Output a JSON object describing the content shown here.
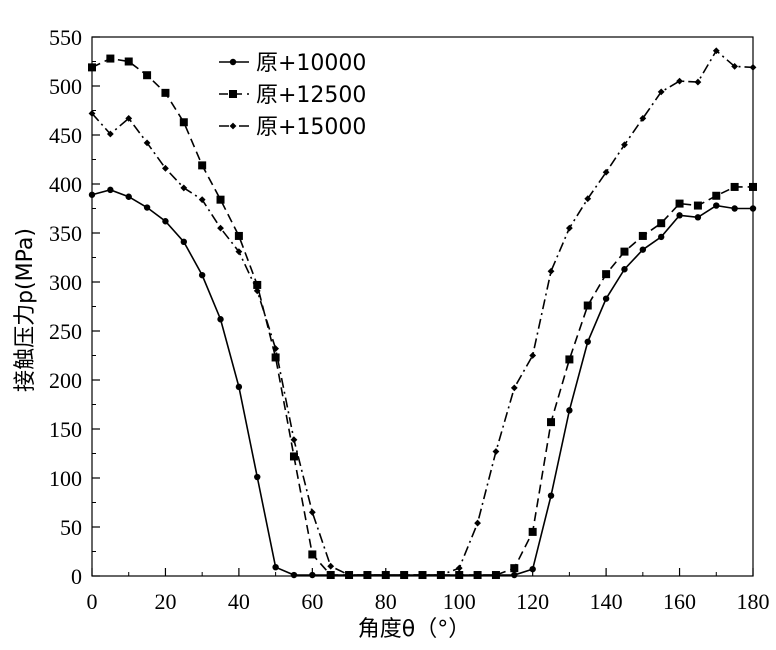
{
  "chart_data": {
    "type": "line",
    "title": "",
    "xlabel": "角度θ（°）",
    "ylabel": "接触压力p(MPa)",
    "xlim": [
      0,
      180
    ],
    "ylim": [
      0,
      550
    ],
    "x_ticks": [
      0,
      20,
      40,
      60,
      80,
      100,
      120,
      140,
      160,
      180
    ],
    "y_ticks": [
      0,
      50,
      100,
      150,
      200,
      250,
      300,
      350,
      400,
      450,
      500,
      550
    ],
    "grid": false,
    "legend_position": "top-center",
    "x": [
      0,
      5,
      10,
      15,
      20,
      25,
      30,
      35,
      40,
      45,
      50,
      55,
      60,
      65,
      70,
      75,
      80,
      85,
      90,
      95,
      100,
      105,
      110,
      115,
      120,
      125,
      130,
      135,
      140,
      145,
      150,
      155,
      160,
      165,
      170,
      175,
      180
    ],
    "series": [
      {
        "name": "原+10000",
        "marker": "circle",
        "dash": "solid",
        "values": [
          389,
          394,
          387,
          376,
          362,
          341,
          307,
          262,
          193,
          101,
          9,
          1,
          1,
          1,
          1,
          1,
          1,
          1,
          1,
          1,
          1,
          1,
          1,
          1,
          7,
          82,
          169,
          239,
          283,
          313,
          333,
          346,
          368,
          366,
          378,
          375,
          375
        ]
      },
      {
        "name": "原+12500",
        "marker": "square",
        "dash": "dashed",
        "values": [
          519,
          528,
          525,
          511,
          493,
          463,
          419,
          384,
          347,
          297,
          223,
          122,
          22,
          1,
          1,
          1,
          1,
          1,
          1,
          1,
          1,
          1,
          1,
          8,
          45,
          157,
          221,
          276,
          308,
          331,
          347,
          360,
          380,
          378,
          388,
          397,
          397
        ]
      },
      {
        "name": "原+15000",
        "marker": "diamond",
        "dash": "dashdot",
        "values": [
          472,
          451,
          467,
          442,
          416,
          396,
          384,
          355,
          331,
          291,
          232,
          139,
          65,
          10,
          1,
          1,
          1,
          1,
          1,
          1,
          8,
          54,
          127,
          192,
          225,
          311,
          355,
          385,
          412,
          440,
          467,
          494,
          505,
          504,
          536,
          520,
          519
        ]
      }
    ]
  }
}
